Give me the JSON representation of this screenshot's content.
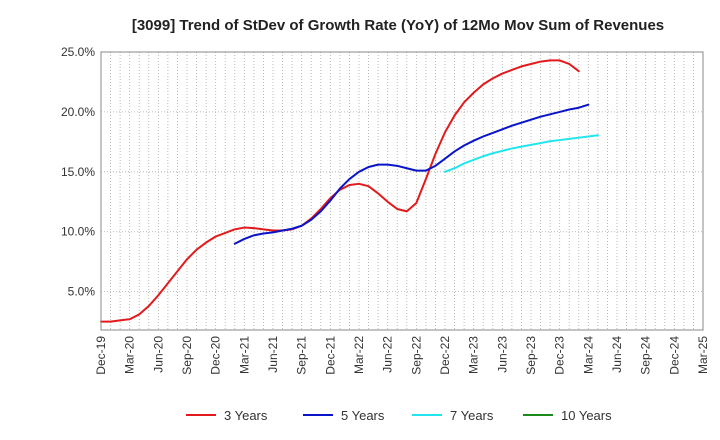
{
  "chart_data": {
    "type": "line",
    "title": "[3099]  Trend of StDev of Growth Rate (YoY) of 12Mo Mov Sum of Revenues",
    "xlabel": "",
    "ylabel": "",
    "ylim": [
      1.8,
      25.0
    ],
    "y_ticks": [
      5.0,
      10.0,
      15.0,
      20.0,
      25.0
    ],
    "y_tick_labels": [
      "5.0%",
      "10.0%",
      "15.0%",
      "20.0%",
      "25.0%"
    ],
    "x_tick_labels": [
      "Dec-19",
      "Mar-20",
      "Jun-20",
      "Sep-20",
      "Dec-20",
      "Mar-21",
      "Jun-21",
      "Sep-21",
      "Dec-21",
      "Mar-22",
      "Jun-22",
      "Sep-22",
      "Dec-22",
      "Mar-23",
      "Jun-23",
      "Sep-23",
      "Dec-23",
      "Mar-24",
      "Jun-24",
      "Sep-24",
      "Dec-24",
      "Mar-25"
    ],
    "grid": true,
    "legend_position": "bottom",
    "series": [
      {
        "name": "3 Years",
        "color": "#e31a1c",
        "start_index": 0,
        "values": [
          2.5,
          2.5,
          2.6,
          2.7,
          3.1,
          3.8,
          4.7,
          5.7,
          6.7,
          7.7,
          8.5,
          9.1,
          9.6,
          9.9,
          10.2,
          10.35,
          10.3,
          10.2,
          10.1,
          10.1,
          10.2,
          10.5,
          11.1,
          11.9,
          12.8,
          13.5,
          13.9,
          14.0,
          13.8,
          13.2,
          12.5,
          11.9,
          11.7,
          12.4,
          14.4,
          16.5,
          18.3,
          19.7,
          20.8,
          21.6,
          22.3,
          22.8,
          23.2,
          23.5,
          23.8,
          24.0,
          24.2,
          24.3,
          24.3,
          24.0,
          23.4
        ]
      },
      {
        "name": "5 Years",
        "color": "#0a14c8",
        "start_index": 14,
        "values": [
          9.0,
          9.4,
          9.7,
          9.85,
          9.95,
          10.1,
          10.25,
          10.5,
          11.0,
          11.7,
          12.6,
          13.6,
          14.4,
          15.0,
          15.4,
          15.6,
          15.6,
          15.5,
          15.3,
          15.1,
          15.1,
          15.5,
          16.1,
          16.7,
          17.2,
          17.6,
          17.95,
          18.25,
          18.55,
          18.85,
          19.1,
          19.35,
          19.6,
          19.8,
          20.0,
          20.2,
          20.35,
          20.6
        ]
      },
      {
        "name": "7 Years",
        "color": "#22e5ee",
        "start_index": 36,
        "values": [
          15.0,
          15.3,
          15.7,
          16.0,
          16.3,
          16.55,
          16.75,
          16.95,
          17.1,
          17.25,
          17.4,
          17.55,
          17.65,
          17.75,
          17.85,
          17.95,
          18.05
        ]
      },
      {
        "name": "10 Years",
        "color": "#1a8a1a",
        "start_index": 0,
        "values": []
      }
    ]
  }
}
